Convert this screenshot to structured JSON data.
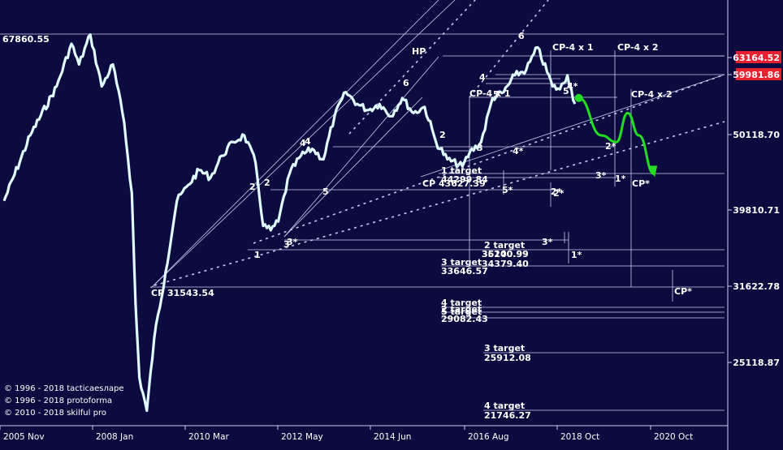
{
  "chart_data": {
    "type": "line",
    "title": "",
    "xlabel": "",
    "ylabel": "",
    "x_ticks": [
      "2005 Nov",
      "2008 Jan",
      "2010 Mar",
      "2012 May",
      "2014 Jun",
      "2016 Aug",
      "2018 Oct",
      "2020 Oct"
    ],
    "y_ticks": [
      "63164.52",
      "59981.86",
      "50118.70",
      "39810.71",
      "31622.78",
      "25118.87"
    ],
    "highlighted_ticks": [
      "63164.52",
      "59981.86"
    ],
    "highlight_color": "#e8202f",
    "log_scale": true,
    "ylim": [
      19500,
      77000
    ],
    "series": [
      {
        "color": "#e0fbff",
        "x": [
          "2005-11",
          "2006-06",
          "2007-01",
          "2007-05",
          "2007-07",
          "2007-10",
          "2008-01",
          "2008-04",
          "2008-07",
          "2008-09",
          "2008-10",
          "2008-11",
          "2009-01",
          "2009-03",
          "2009-06",
          "2009-09",
          "2009-12",
          "2010-03",
          "2010-06",
          "2010-09",
          "2010-12",
          "2011-03",
          "2011-06",
          "2011-08",
          "2011-10",
          "2011-12",
          "2012-03",
          "2012-06",
          "2012-09",
          "2012-12",
          "2013-03",
          "2013-06",
          "2013-09",
          "2013-12",
          "2014-03",
          "2014-06",
          "2014-09",
          "2014-12",
          "2015-03",
          "2015-06",
          "2015-09",
          "2016-01",
          "2016-03",
          "2016-06",
          "2016-09",
          "2016-12",
          "2017-03",
          "2017-06",
          "2017-09",
          "2018-01",
          "2018-03",
          "2018-05",
          "2018-07"
        ],
        "values": [
          41000,
          50000,
          58000,
          66000,
          62000,
          67860,
          58000,
          62000,
          52000,
          42000,
          30000,
          24000,
          21700,
          27000,
          33000,
          41000,
          43000,
          45000,
          44000,
          47000,
          49000,
          50000,
          46000,
          38000,
          37500,
          38500,
          44500,
          47000,
          48000,
          46500,
          53000,
          57000,
          55000,
          54000,
          55000,
          53000,
          56000,
          53500,
          54500,
          49000,
          46500,
          45500,
          47500,
          49000,
          56000,
          57000,
          60000,
          61000,
          65300,
          58000,
          57500,
          60000,
          55000
        ]
      }
    ],
    "projection": {
      "color": "#22dd22",
      "x": [
        "2018-08",
        "2019-02",
        "2019-06",
        "2019-09",
        "2019-12",
        "2020-04"
      ],
      "values": [
        56000,
        50000,
        49000,
        53500,
        50000,
        44500
      ]
    },
    "line_labels": [
      {
        "text": "67860.55"
      },
      {
        "text": "HP"
      },
      {
        "text": "CP-4 x 1"
      },
      {
        "text": "CP-4 x 2"
      },
      {
        "text": "CP-4 x 1"
      },
      {
        "text": "CP-4 x 2"
      },
      {
        "text": "CP 43627.39"
      },
      {
        "text": "CP 31543.54"
      },
      {
        "text": "CP*"
      },
      {
        "text": "CP*"
      },
      {
        "text": "1 target"
      },
      {
        "text": "44299.84"
      },
      {
        "text": "2 target"
      },
      {
        "text": "36200.99"
      },
      {
        "text": "35140.99"
      },
      {
        "text": "34379.40"
      },
      {
        "text": "3 target"
      },
      {
        "text": "33646.57"
      },
      {
        "text": "4 target"
      },
      {
        "text": "2 target"
      },
      {
        "text": "5 target"
      },
      {
        "text": "29082.43"
      },
      {
        "text": "3 target"
      },
      {
        "text": "25912.08"
      },
      {
        "text": "4 target"
      },
      {
        "text": "21746.27"
      }
    ],
    "wave_labels": [
      {
        "text": "1"
      },
      {
        "text": "2"
      },
      {
        "text": "2'"
      },
      {
        "text": "3"
      },
      {
        "text": "3*"
      },
      {
        "text": "4"
      },
      {
        "text": "4"
      },
      {
        "text": "5"
      },
      {
        "text": "6"
      },
      {
        "text": "2"
      },
      {
        "text": "3"
      },
      {
        "text": "4"
      },
      {
        "text": "5"
      },
      {
        "text": "6"
      },
      {
        "text": "5'"
      },
      {
        "text": "4*"
      },
      {
        "text": "3*"
      },
      {
        "text": "4*"
      },
      {
        "text": "5*"
      },
      {
        "text": "2*"
      },
      {
        "text": "2*"
      },
      {
        "text": "1*"
      },
      {
        "text": "3*"
      },
      {
        "text": "1*"
      },
      {
        "text": "2*"
      }
    ],
    "copyright": [
      "© 1996 - 2018 tacticaesларе",
      "© 1996 - 2018 protoforma",
      "© 2010 - 2018 skilful pro"
    ]
  }
}
